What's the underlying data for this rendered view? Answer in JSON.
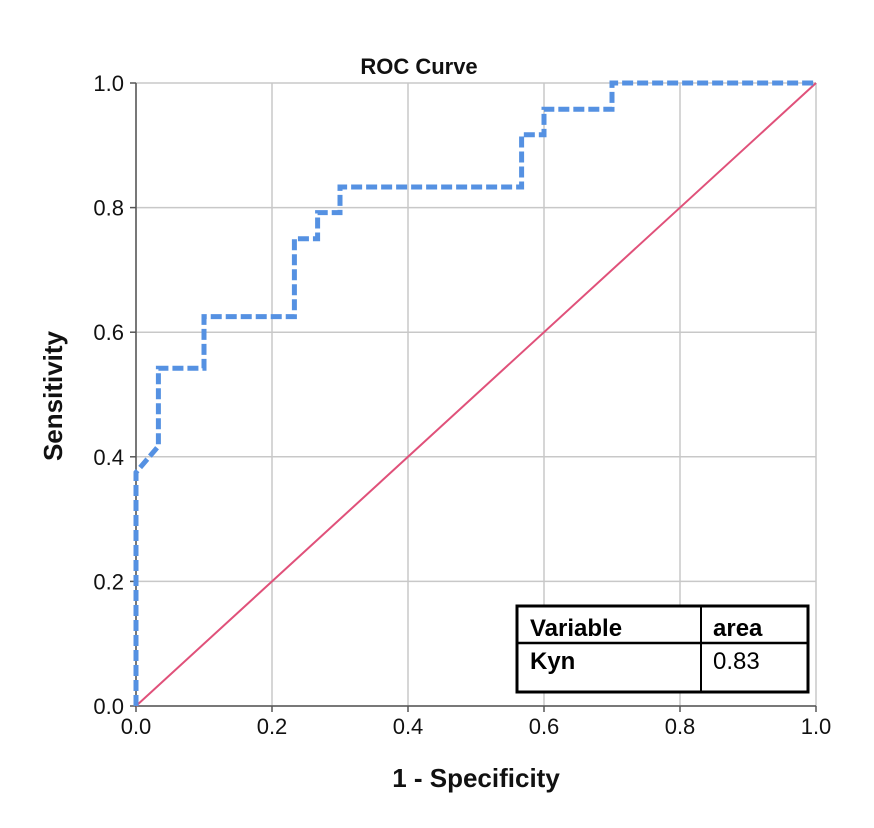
{
  "chart_data": {
    "type": "line",
    "title": "ROC Curve",
    "xlabel": "1 - Specificity",
    "ylabel": "Sensitivity",
    "xlim": [
      0,
      1
    ],
    "ylim": [
      0,
      1
    ],
    "grid": true,
    "x_ticks": [
      "0.0",
      "0.2",
      "0.4",
      "0.6",
      "0.8",
      "1.0"
    ],
    "y_ticks": [
      "0.0",
      "0.2",
      "0.4",
      "0.6",
      "0.8",
      "1.0"
    ],
    "series": [
      {
        "name": "Kyn",
        "style": "dashed",
        "color": "#5591e2",
        "x": [
          0.0,
          0.0,
          0.033,
          0.033,
          0.1,
          0.1,
          0.233,
          0.233,
          0.267,
          0.267,
          0.3,
          0.3,
          0.567,
          0.567,
          0.6,
          0.6,
          0.7,
          0.7,
          1.0
        ],
        "y": [
          0.0,
          0.375,
          0.417,
          0.542,
          0.542,
          0.625,
          0.625,
          0.75,
          0.75,
          0.792,
          0.792,
          0.833,
          0.833,
          0.917,
          0.917,
          0.958,
          0.958,
          1.0,
          1.0
        ]
      },
      {
        "name": "",
        "style": "solid",
        "color": "#e0517a",
        "x": [
          0,
          1
        ],
        "y": [
          0,
          1
        ]
      }
    ],
    "legend": {
      "position": "bottom-right",
      "headers": [
        "Variable",
        "area"
      ],
      "rows": [
        [
          "Kyn",
          "0.83"
        ]
      ]
    }
  }
}
